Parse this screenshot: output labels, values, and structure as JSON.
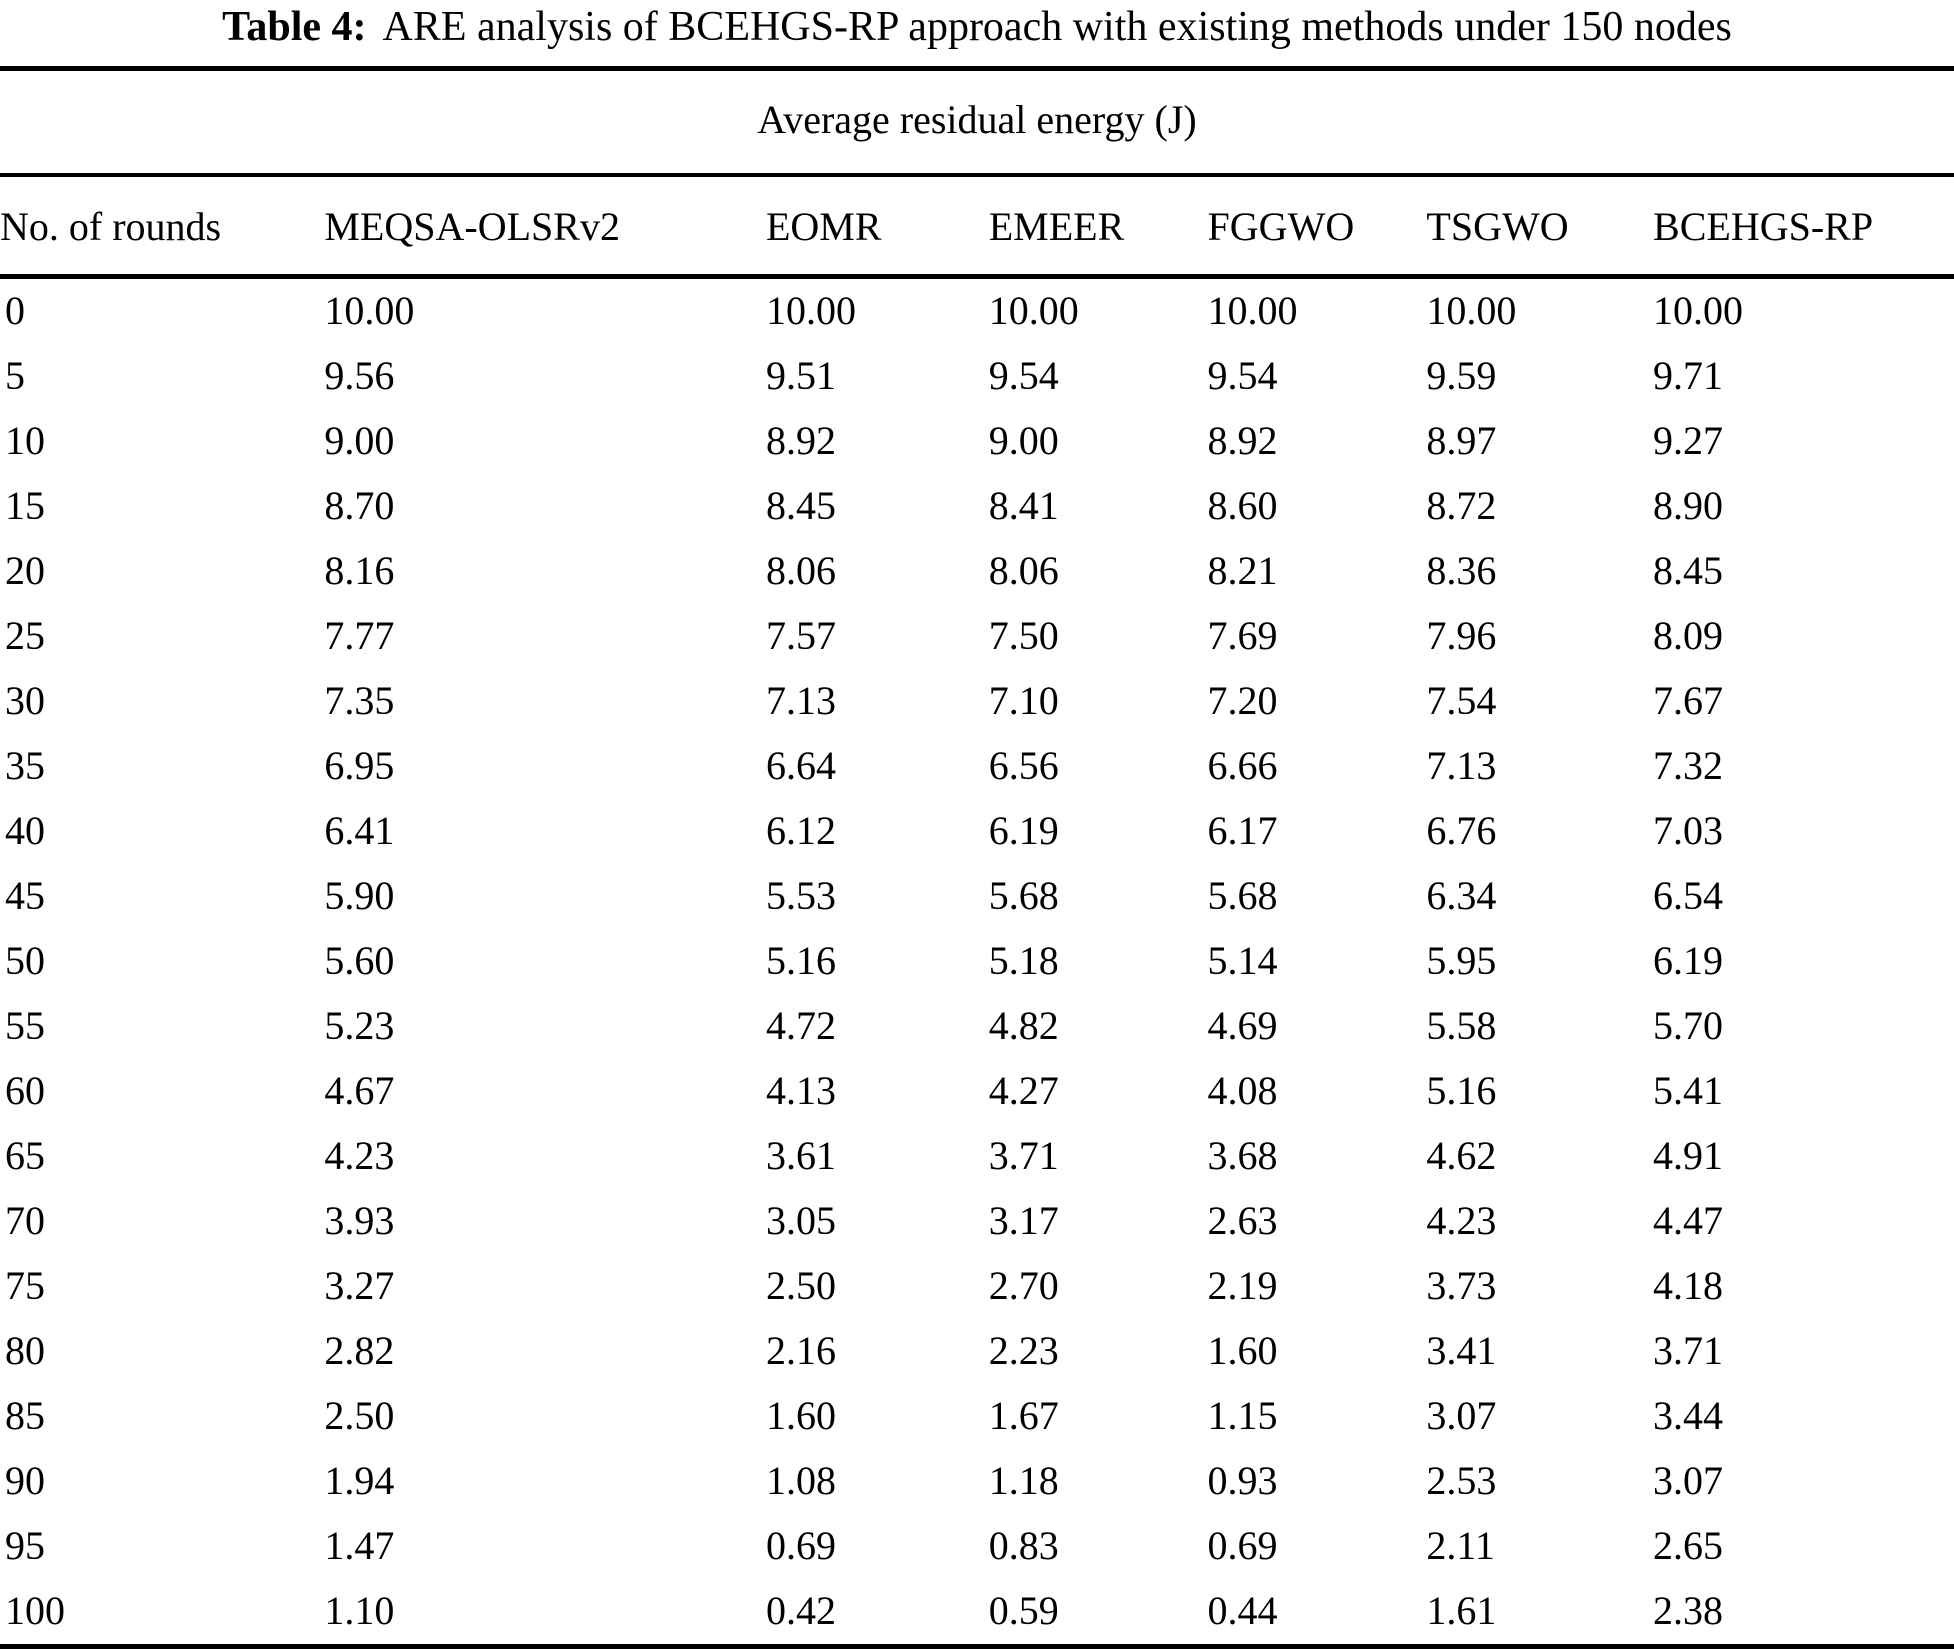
{
  "caption": {
    "label": "Table 4:",
    "text": "ARE analysis of BCEHGS-RP approach with existing methods under 150 nodes"
  },
  "chart_data": {
    "type": "table",
    "title": "Average residual energy (J)",
    "xlabel": "No. of rounds",
    "ylabel": "Average residual energy (J)",
    "columns": [
      "No. of rounds",
      "MEQSA-OLSRv2",
      "EOMR",
      "EMEER",
      "FGGWO",
      "TSGWO",
      "BCEHGS-RP"
    ],
    "rows": [
      [
        "0",
        "10.00",
        "10.00",
        "10.00",
        "10.00",
        "10.00",
        "10.00"
      ],
      [
        "5",
        "9.56",
        "9.51",
        "9.54",
        "9.54",
        "9.59",
        "9.71"
      ],
      [
        "10",
        "9.00",
        "8.92",
        "9.00",
        "8.92",
        "8.97",
        "9.27"
      ],
      [
        "15",
        "8.70",
        "8.45",
        "8.41",
        "8.60",
        "8.72",
        "8.90"
      ],
      [
        "20",
        "8.16",
        "8.06",
        "8.06",
        "8.21",
        "8.36",
        "8.45"
      ],
      [
        "25",
        "7.77",
        "7.57",
        "7.50",
        "7.69",
        "7.96",
        "8.09"
      ],
      [
        "30",
        "7.35",
        "7.13",
        "7.10",
        "7.20",
        "7.54",
        "7.67"
      ],
      [
        "35",
        "6.95",
        "6.64",
        "6.56",
        "6.66",
        "7.13",
        "7.32"
      ],
      [
        "40",
        "6.41",
        "6.12",
        "6.19",
        "6.17",
        "6.76",
        "7.03"
      ],
      [
        "45",
        "5.90",
        "5.53",
        "5.68",
        "5.68",
        "6.34",
        "6.54"
      ],
      [
        "50",
        "5.60",
        "5.16",
        "5.18",
        "5.14",
        "5.95",
        "6.19"
      ],
      [
        "55",
        "5.23",
        "4.72",
        "4.82",
        "4.69",
        "5.58",
        "5.70"
      ],
      [
        "60",
        "4.67",
        "4.13",
        "4.27",
        "4.08",
        "5.16",
        "5.41"
      ],
      [
        "65",
        "4.23",
        "3.61",
        "3.71",
        "3.68",
        "4.62",
        "4.91"
      ],
      [
        "70",
        "3.93",
        "3.05",
        "3.17",
        "2.63",
        "4.23",
        "4.47"
      ],
      [
        "75",
        "3.27",
        "2.50",
        "2.70",
        "2.19",
        "3.73",
        "4.18"
      ],
      [
        "80",
        "2.82",
        "2.16",
        "2.23",
        "1.60",
        "3.41",
        "3.71"
      ],
      [
        "85",
        "2.50",
        "1.60",
        "1.67",
        "1.15",
        "3.07",
        "3.44"
      ],
      [
        "90",
        "1.94",
        "1.08",
        "1.18",
        "0.93",
        "2.53",
        "3.07"
      ],
      [
        "95",
        "1.47",
        "0.69",
        "0.83",
        "0.69",
        "2.11",
        "2.65"
      ],
      [
        "100",
        "1.10",
        "0.42",
        "0.59",
        "0.44",
        "1.61",
        "2.38"
      ]
    ]
  }
}
